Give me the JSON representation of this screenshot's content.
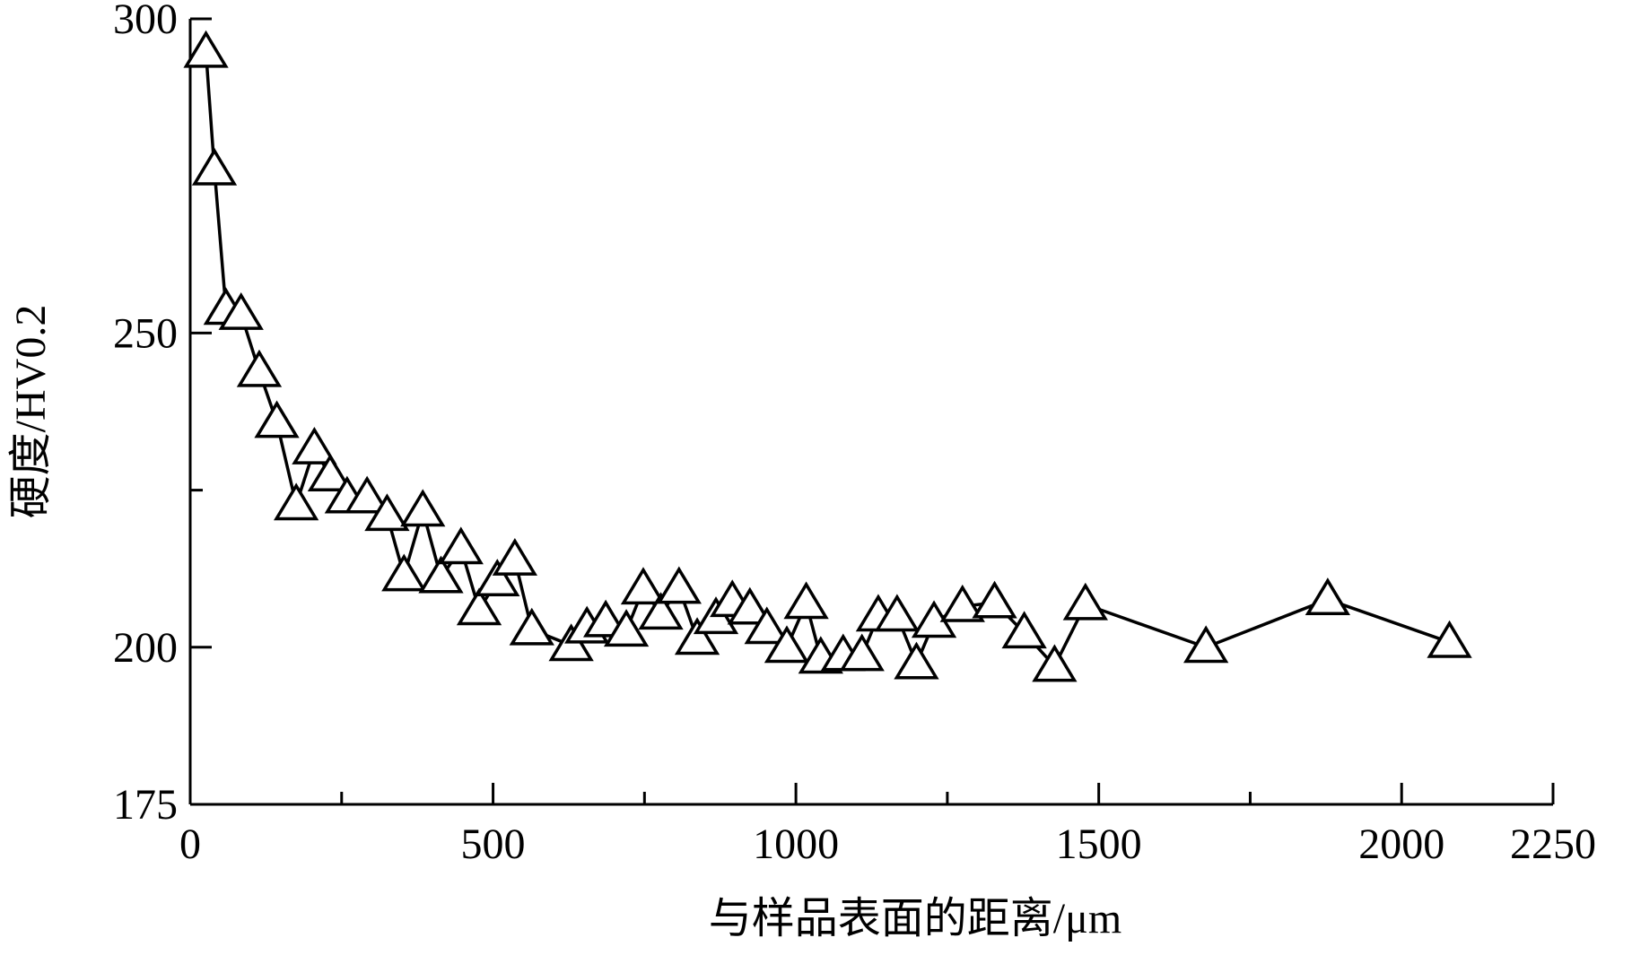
{
  "chart_data": {
    "type": "line",
    "x_label": "与样品表面的距离/μm",
    "y_label": "硬度/HV0.2",
    "x": [
      26,
      40,
      59,
      84,
      114,
      143,
      175,
      205,
      231,
      259,
      292,
      325,
      353,
      384,
      414,
      447,
      477,
      507,
      536,
      564,
      629,
      655,
      686,
      720,
      748,
      777,
      807,
      837,
      868,
      895,
      924,
      952,
      985,
      1017,
      1041,
      1078,
      1109,
      1136,
      1167,
      1199,
      1228,
      1275,
      1328,
      1377,
      1427,
      1478,
      1677,
      1878,
      2079
    ],
    "series": [
      {
        "color": "#000000",
        "marker": "triangle",
        "values": [
          294.7,
          276,
          253.8,
          253,
          243.9,
          235.8,
          222.7,
          231.6,
          227.3,
          223.8,
          223.8,
          221,
          211.4,
          221.7,
          211.1,
          215.7,
          206,
          210.6,
          213.9,
          202.8,
          200.3,
          203.1,
          204.1,
          202.6,
          209.3,
          205.3,
          209.4,
          201.3,
          204.6,
          207.3,
          206.1,
          203,
          200,
          207,
          198.3,
          198.7,
          198.7,
          205,
          205,
          197.4,
          204,
          206.5,
          207.1,
          202.3,
          197,
          206.8,
          200,
          207.6,
          200.8
        ]
      }
    ],
    "xlim": [
      0,
      2250
    ],
    "ylim": [
      175,
      300
    ],
    "xticks": [
      0,
      500,
      1000,
      1500,
      2000,
      2250
    ],
    "yticks": [
      175,
      200,
      250,
      300
    ],
    "x_minor_ticks": [
      250,
      750,
      1250,
      1750
    ],
    "y_minor_ticks": [
      225
    ]
  }
}
